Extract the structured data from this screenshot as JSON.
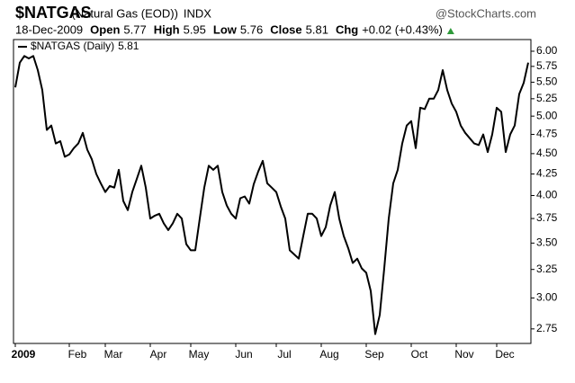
{
  "chart_data": {
    "type": "line",
    "header": {
      "symbol": "$NATGAS",
      "description": "(Natural Gas (EOD))",
      "exchange": "INDX",
      "source": "@StockCharts.com",
      "date": "18-Dec-2009",
      "quote": [
        {
          "label": "Open",
          "value": 5.77
        },
        {
          "label": "High",
          "value": 5.95
        },
        {
          "label": "Low",
          "value": 5.76
        },
        {
          "label": "Close",
          "value": 5.81
        }
      ],
      "change_label": "Chg",
      "change": "+0.02 (+0.43%)"
    },
    "categories": [
      "2009",
      null,
      null,
      null,
      null,
      null,
      null,
      null,
      null,
      null,
      null,
      null,
      "Feb",
      null,
      null,
      null,
      null,
      null,
      null,
      null,
      "Mar",
      null,
      null,
      null,
      null,
      null,
      null,
      null,
      null,
      null,
      "Apr",
      null,
      null,
      null,
      null,
      null,
      null,
      null,
      null,
      "May",
      null,
      null,
      null,
      null,
      null,
      null,
      null,
      null,
      null,
      "Jun",
      null,
      null,
      null,
      null,
      null,
      null,
      null,
      null,
      "Jul",
      null,
      null,
      null,
      null,
      null,
      null,
      null,
      null,
      null,
      "Aug",
      null,
      null,
      null,
      null,
      null,
      null,
      null,
      null,
      null,
      "Sep",
      null,
      null,
      null,
      null,
      null,
      null,
      null,
      null,
      null,
      "Oct",
      null,
      null,
      null,
      null,
      null,
      null,
      null,
      null,
      null,
      "Nov",
      null,
      null,
      null,
      null,
      null,
      null,
      null,
      null,
      "Dec",
      null,
      null,
      null,
      null,
      null,
      null,
      null
    ],
    "series": [
      {
        "name": "$NATGAS (Daily)",
        "color": "#000000",
        "values": [
          5.42,
          5.81,
          5.92,
          5.88,
          5.92,
          5.69,
          5.38,
          4.81,
          4.87,
          4.63,
          4.66,
          4.46,
          4.49,
          4.57,
          4.63,
          4.77,
          4.55,
          4.43,
          4.25,
          4.14,
          4.04,
          4.11,
          4.09,
          4.3,
          3.94,
          3.84,
          4.04,
          4.19,
          4.35,
          4.09,
          3.75,
          3.78,
          3.8,
          3.7,
          3.63,
          3.7,
          3.8,
          3.75,
          3.49,
          3.43,
          3.43,
          3.75,
          4.09,
          4.35,
          4.3,
          4.35,
          4.04,
          3.89,
          3.8,
          3.75,
          3.97,
          3.99,
          3.91,
          4.13,
          4.28,
          4.41,
          4.14,
          4.09,
          4.04,
          3.88,
          3.75,
          3.43,
          3.39,
          3.35,
          3.57,
          3.8,
          3.8,
          3.75,
          3.57,
          3.66,
          3.89,
          4.04,
          3.75,
          3.57,
          3.45,
          3.31,
          3.35,
          3.26,
          3.22,
          3.06,
          2.71,
          2.86,
          3.26,
          3.75,
          4.14,
          4.3,
          4.63,
          4.87,
          4.93,
          4.57,
          5.12,
          5.1,
          5.25,
          5.25,
          5.38,
          5.69,
          5.38,
          5.18,
          5.06,
          4.87,
          4.77,
          4.7,
          4.63,
          4.61,
          4.75,
          4.52,
          4.75,
          5.12,
          5.06,
          4.52,
          4.75,
          4.87,
          5.32,
          5.49,
          5.81
        ]
      }
    ],
    "ylim": [
      2.64,
      6.2
    ],
    "yticks": [
      2.75,
      {
        "value": 3,
        "label": "3.00"
      },
      3.25,
      {
        "value": 3.5,
        "label": "3.50"
      },
      3.75,
      {
        "value": 4,
        "label": "4.00"
      },
      4.25,
      {
        "value": 4.5,
        "label": "4.50"
      },
      4.75,
      {
        "value": 5,
        "label": "5.00"
      },
      5.25,
      {
        "value": 5.5,
        "label": "5.50"
      },
      5.75,
      {
        "value": 6,
        "label": "6.00"
      }
    ],
    "log_scale": true,
    "grid": false,
    "change_color": "#2e9a3a"
  }
}
